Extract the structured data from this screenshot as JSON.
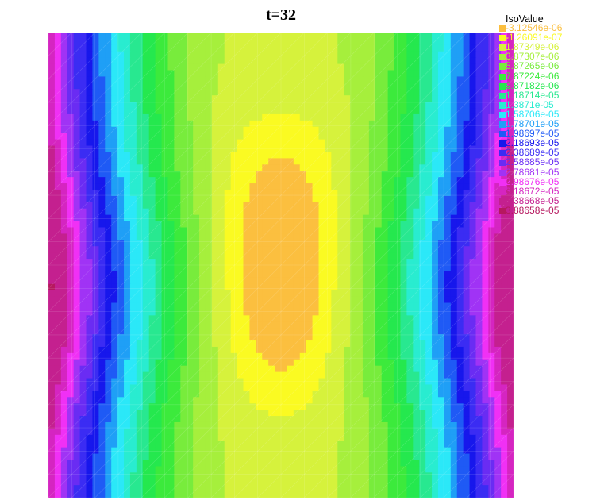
{
  "title": "t=32",
  "chart_data": {
    "type": "heatmap",
    "title": "t=32",
    "legend": {
      "title": "IsoValue",
      "placement": "top-right",
      "levels": [
        {
          "label": "-3.12546e-06",
          "value": -3.12546e-06,
          "color": "#fbbf3f"
        },
        {
          "label": "-1.26091e-07",
          "value": -1.26091e-07,
          "color": "#fafa22"
        },
        {
          "label": "1.87349e-06",
          "value": 1.87349e-06,
          "color": "#d6f23c"
        },
        {
          "label": "3.87307e-06",
          "value": 3.87307e-06,
          "color": "#a6ef3c"
        },
        {
          "label": "5.87265e-06",
          "value": 5.87265e-06,
          "color": "#78ec3c"
        },
        {
          "label": "7.87224e-06",
          "value": 7.87224e-06,
          "color": "#3cea3c"
        },
        {
          "label": "9.87182e-06",
          "value": 9.87182e-06,
          "color": "#25e84e"
        },
        {
          "label": "1.18714e-05",
          "value": 1.18714e-05,
          "color": "#28e890"
        },
        {
          "label": "1.3871e-05",
          "value": 1.3871e-05,
          "color": "#29ecd0"
        },
        {
          "label": "1.58706e-05",
          "value": 1.58706e-05,
          "color": "#2be8f8"
        },
        {
          "label": "1.78701e-05",
          "value": 1.78701e-05,
          "color": "#1f9ff6"
        },
        {
          "label": "1.98697e-05",
          "value": 1.98697e-05,
          "color": "#1f5af5"
        },
        {
          "label": "2.18693e-05",
          "value": 2.18693e-05,
          "color": "#1717ec"
        },
        {
          "label": "2.38689e-05",
          "value": 2.38689e-05,
          "color": "#3b2cf3"
        },
        {
          "label": "2.58685e-05",
          "value": 2.58685e-05,
          "color": "#6a2cf3"
        },
        {
          "label": "2.78681e-05",
          "value": 2.78681e-05,
          "color": "#a033f5"
        },
        {
          "label": "2.98676e-05",
          "value": 2.98676e-05,
          "color": "#f030f5"
        },
        {
          "label": "3.18672e-05",
          "value": 3.18672e-05,
          "color": "#d525c1"
        },
        {
          "label": "3.38668e-05",
          "value": 3.38668e-05,
          "color": "#c4208f"
        },
        {
          "label": "3.88658e-05",
          "value": 3.88658e-05,
          "color": "#b6185f"
        }
      ]
    }
  }
}
